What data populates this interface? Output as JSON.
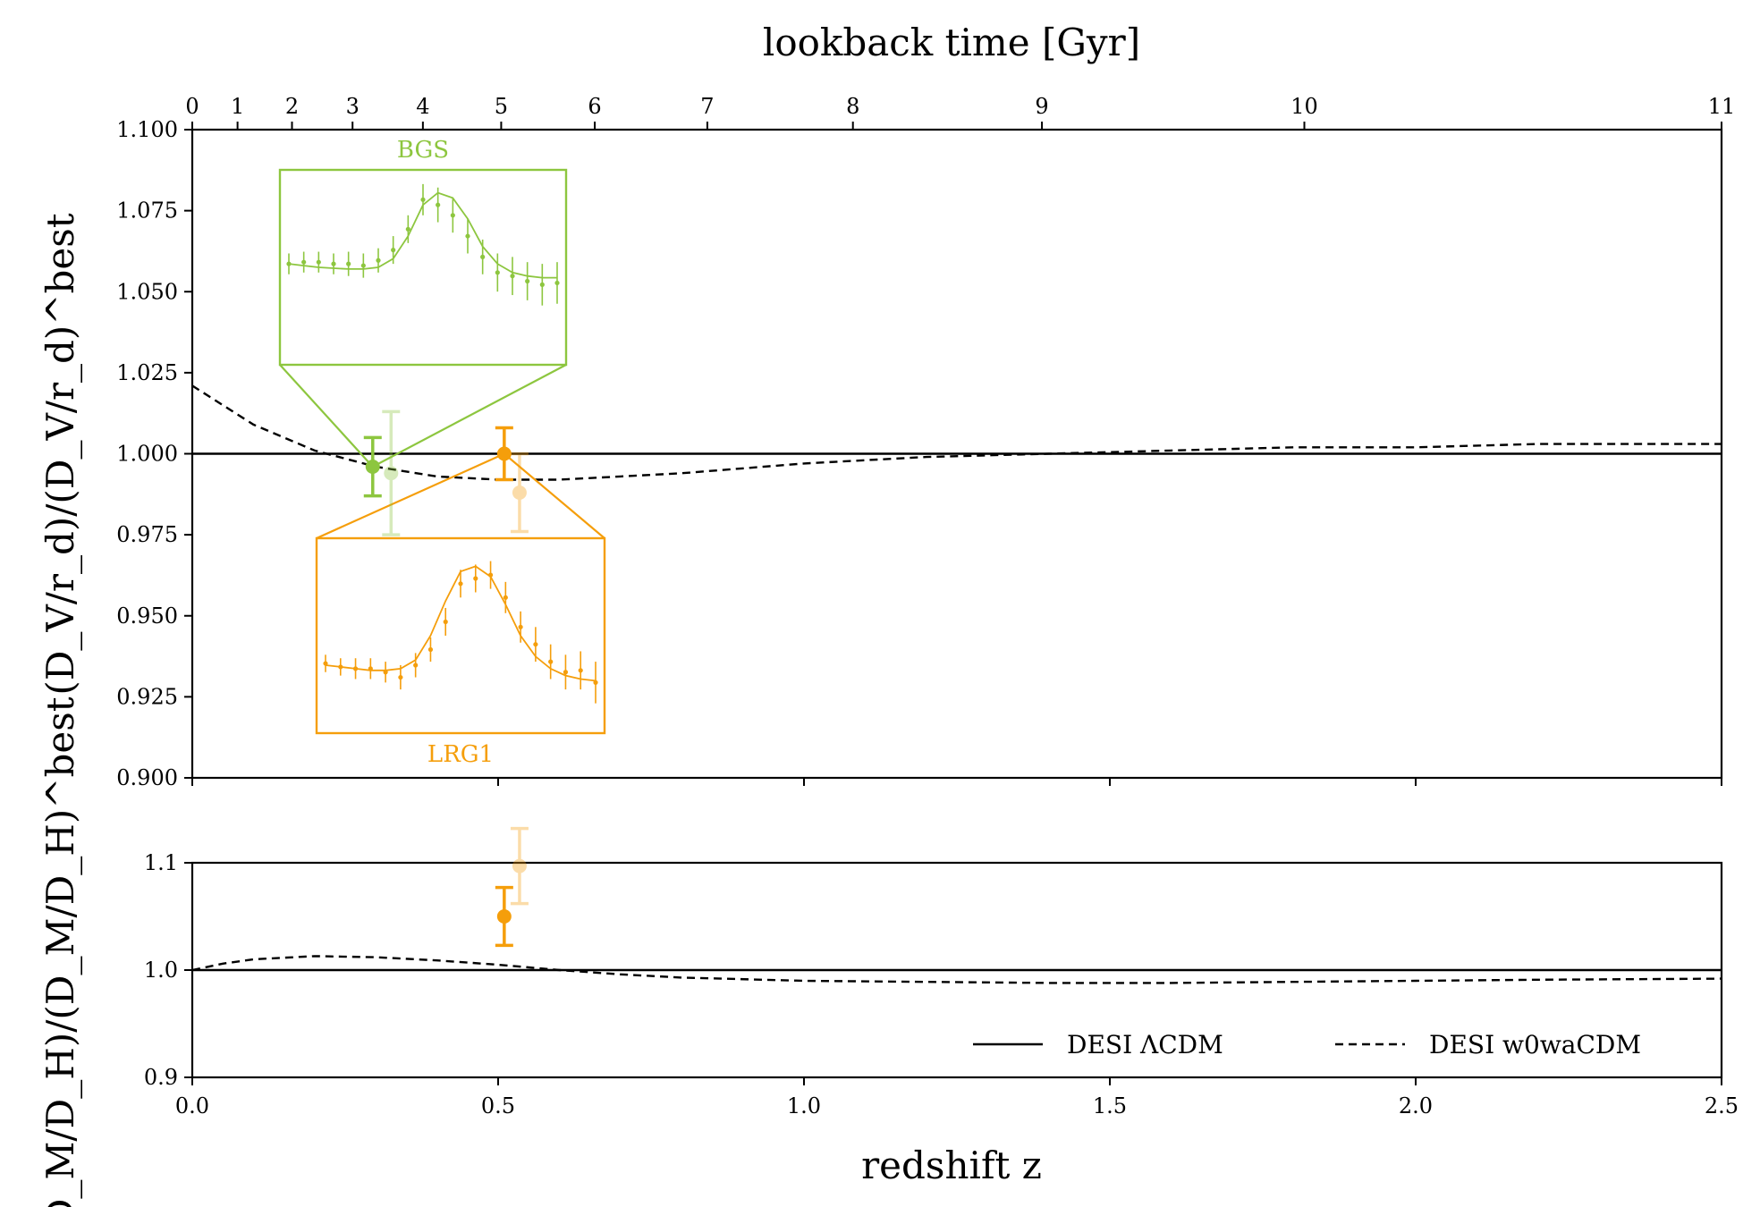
{
  "chart_data": [
    {
      "type": "scatter",
      "panel": "top",
      "title": "",
      "xlabel": "redshift z",
      "ylabel": "(D_V/r_d)/(D_V/r_d)^best",
      "top_axis_title": "lookback time [Gyr]",
      "top_axis_ticks": [
        {
          "label": "0",
          "z": 0.0
        },
        {
          "label": "1",
          "z": 0.074
        },
        {
          "label": "2",
          "z": 0.163
        },
        {
          "label": "3",
          "z": 0.262
        },
        {
          "label": "4",
          "z": 0.377
        },
        {
          "label": "5",
          "z": 0.505
        },
        {
          "label": "6",
          "z": 0.658
        },
        {
          "label": "7",
          "z": 0.842
        },
        {
          "label": "8",
          "z": 1.08
        },
        {
          "label": "9",
          "z": 1.389
        },
        {
          "label": "10",
          "z": 1.818
        },
        {
          "label": "11",
          "z": 2.5
        }
      ],
      "xlim": [
        0.0,
        2.5
      ],
      "ylim": [
        0.9,
        1.1
      ],
      "yticks": [
        "0.900",
        "0.925",
        "0.950",
        "0.975",
        "1.000",
        "1.025",
        "1.050",
        "1.075",
        "1.100"
      ],
      "series": [
        {
          "name": "DESI ΛCDM",
          "style": "solid",
          "x": [
            0.0,
            2.5
          ],
          "y": [
            1.0,
            1.0
          ]
        },
        {
          "name": "DESI w0waCDM",
          "style": "dashed",
          "x": [
            0.0,
            0.1,
            0.2,
            0.3,
            0.4,
            0.5,
            0.6,
            0.7,
            0.8,
            1.0,
            1.2,
            1.4,
            1.6,
            1.8,
            2.0,
            2.2,
            2.5
          ],
          "y": [
            1.021,
            1.009,
            1.001,
            0.996,
            0.993,
            0.992,
            0.992,
            0.993,
            0.994,
            0.997,
            0.999,
            1.0,
            1.001,
            1.002,
            1.002,
            1.003,
            1.003
          ]
        }
      ],
      "points": [
        {
          "tracer": "BGS",
          "z": 0.295,
          "value": 0.996,
          "err": 0.009,
          "color": "#8dc63f",
          "faded": false
        },
        {
          "tracer": "BGS",
          "z": 0.325,
          "value": 0.994,
          "err": 0.019,
          "color": "#8dc63f",
          "faded": true
        },
        {
          "tracer": "LRG1",
          "z": 0.51,
          "value": 1.0,
          "err": 0.008,
          "color": "#f59e0b",
          "faded": false
        },
        {
          "tracer": "LRG1",
          "z": 0.535,
          "value": 0.988,
          "err": 0.012,
          "color": "#f59e0b",
          "faded": true
        }
      ]
    },
    {
      "type": "scatter",
      "panel": "bottom",
      "xlabel": "redshift z",
      "ylabel": "(D_M/D_H)/(D_M/D_H)^best",
      "xlim": [
        0.0,
        2.5
      ],
      "ylim": [
        0.9,
        1.1
      ],
      "xticks": [
        "0.0",
        "0.5",
        "1.0",
        "1.5",
        "2.0",
        "2.5"
      ],
      "yticks": [
        "0.9",
        "1.0",
        "1.1"
      ],
      "series": [
        {
          "name": "DESI ΛCDM",
          "style": "solid",
          "x": [
            0.0,
            2.5
          ],
          "y": [
            1.0,
            1.0
          ]
        },
        {
          "name": "DESI w0waCDM",
          "style": "dashed",
          "x": [
            0.0,
            0.05,
            0.1,
            0.2,
            0.3,
            0.4,
            0.5,
            0.6,
            0.7,
            0.8,
            1.0,
            1.2,
            1.4,
            1.6,
            1.8,
            2.0,
            2.2,
            2.5
          ],
          "y": [
            1.0,
            1.006,
            1.01,
            1.013,
            1.012,
            1.009,
            1.005,
            1.0,
            0.996,
            0.993,
            0.99,
            0.989,
            0.988,
            0.988,
            0.989,
            0.99,
            0.991,
            0.992
          ]
        }
      ],
      "points": [
        {
          "tracer": "LRG1",
          "z": 0.51,
          "value": 1.05,
          "err": 0.027,
          "color": "#f59e0b",
          "faded": false
        },
        {
          "tracer": "LRG1",
          "z": 0.535,
          "value": 1.097,
          "err": 0.035,
          "color": "#f59e0b",
          "faded": true
        }
      ]
    }
  ],
  "insets": [
    {
      "label": "BGS",
      "color": "#8dc63f",
      "anchor_z": 0.295,
      "anchor_value": 0.996,
      "label_position": "top",
      "curve": [
        0.52,
        0.51,
        0.5,
        0.495,
        0.49,
        0.49,
        0.5,
        0.55,
        0.68,
        0.86,
        0.93,
        0.9,
        0.78,
        0.62,
        0.52,
        0.47,
        0.45,
        0.44,
        0.44
      ],
      "points": [
        0.52,
        0.53,
        0.53,
        0.52,
        0.52,
        0.51,
        0.54,
        0.6,
        0.72,
        0.89,
        0.86,
        0.8,
        0.68,
        0.56,
        0.47,
        0.45,
        0.42,
        0.4,
        0.41
      ],
      "errs": [
        0.06,
        0.06,
        0.06,
        0.06,
        0.07,
        0.07,
        0.07,
        0.08,
        0.08,
        0.09,
        0.1,
        0.1,
        0.1,
        0.1,
        0.11,
        0.11,
        0.11,
        0.12,
        0.12
      ]
    },
    {
      "label": "LRG1",
      "color": "#f59e0b",
      "anchor_z": 0.51,
      "anchor_value": 1.0,
      "label_position": "bottom",
      "curve": [
        0.33,
        0.32,
        0.31,
        0.3,
        0.3,
        0.31,
        0.36,
        0.5,
        0.7,
        0.87,
        0.9,
        0.84,
        0.68,
        0.5,
        0.38,
        0.31,
        0.27,
        0.25,
        0.24
      ],
      "points": [
        0.34,
        0.32,
        0.31,
        0.31,
        0.29,
        0.26,
        0.33,
        0.42,
        0.58,
        0.8,
        0.83,
        0.85,
        0.72,
        0.55,
        0.45,
        0.35,
        0.29,
        0.3,
        0.23
      ],
      "errs": [
        0.05,
        0.05,
        0.06,
        0.06,
        0.06,
        0.07,
        0.07,
        0.07,
        0.08,
        0.08,
        0.08,
        0.08,
        0.09,
        0.09,
        0.1,
        0.1,
        0.1,
        0.11,
        0.12
      ]
    }
  ],
  "legend": {
    "position": "lower-right",
    "entries": [
      {
        "label": "DESI ΛCDM",
        "style": "solid"
      },
      {
        "label": "DESI w0waCDM",
        "style": "dashed"
      }
    ]
  }
}
